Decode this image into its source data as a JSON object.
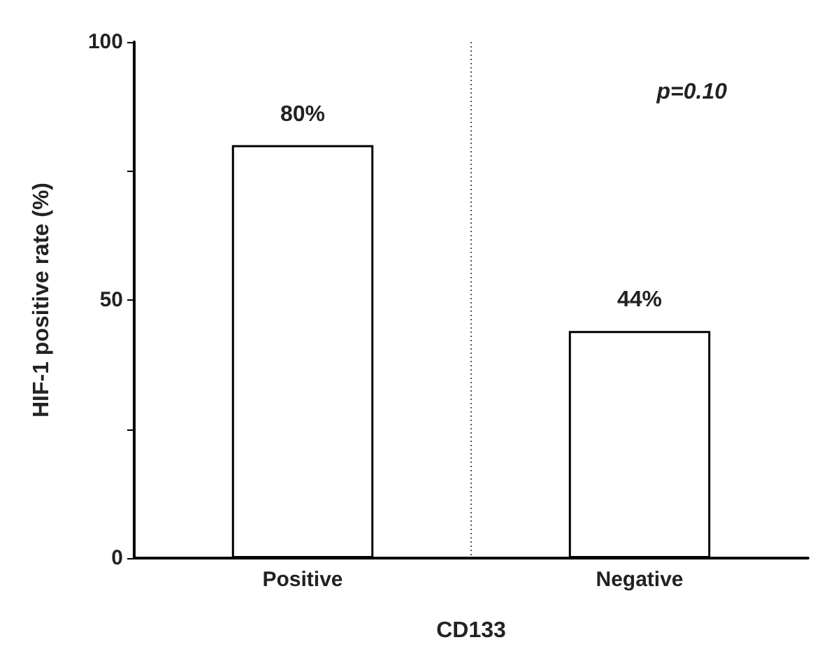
{
  "chart_data": {
    "type": "bar",
    "ylabel": "HIF-1 positive rate (%)",
    "xlabel": "CD133",
    "categories": [
      "Positive",
      "Negative"
    ],
    "values": [
      80,
      44
    ],
    "value_labels": [
      "80%",
      "44%"
    ],
    "color": "#ffffff",
    "ylim": [
      0,
      100
    ],
    "yticks": [
      0,
      {
        "value": 25,
        "label": null
      },
      50,
      {
        "value": 75,
        "label": null
      },
      100
    ],
    "annotations": [
      "p=0.10"
    ]
  }
}
